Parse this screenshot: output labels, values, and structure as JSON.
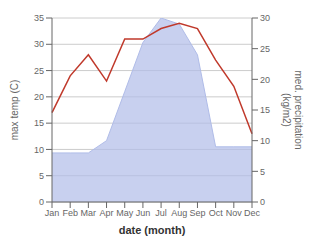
{
  "chart_data": {
    "type": "line",
    "categories": [
      "Jan",
      "Feb",
      "Mar",
      "Apr",
      "May",
      "Jun",
      "Jul",
      "Aug",
      "Sep",
      "Oct",
      "Nov",
      "Dec"
    ],
    "series": [
      {
        "type": "area",
        "axis": "y2",
        "color": "#b0bce8",
        "values": [
          8,
          8,
          8,
          10,
          18,
          26,
          30,
          29,
          24,
          9,
          9,
          9
        ]
      },
      {
        "type": "line",
        "color": "#c0392b",
        "values": [
          17,
          24,
          28,
          23,
          31,
          31,
          33,
          34,
          33,
          27,
          22,
          13
        ]
      }
    ],
    "xlabel": "date (month)",
    "ylabel": "max temp (C)",
    "y2label": "med. precipitation\n(kg/m2)",
    "ylim": [
      0,
      35
    ],
    "yticks": [
      0,
      5,
      10,
      15,
      20,
      25,
      30,
      35
    ],
    "y2lim": [
      0,
      30
    ],
    "y2ticks": [
      0,
      5,
      10,
      15,
      20,
      25,
      30
    ],
    "grid": true
  }
}
